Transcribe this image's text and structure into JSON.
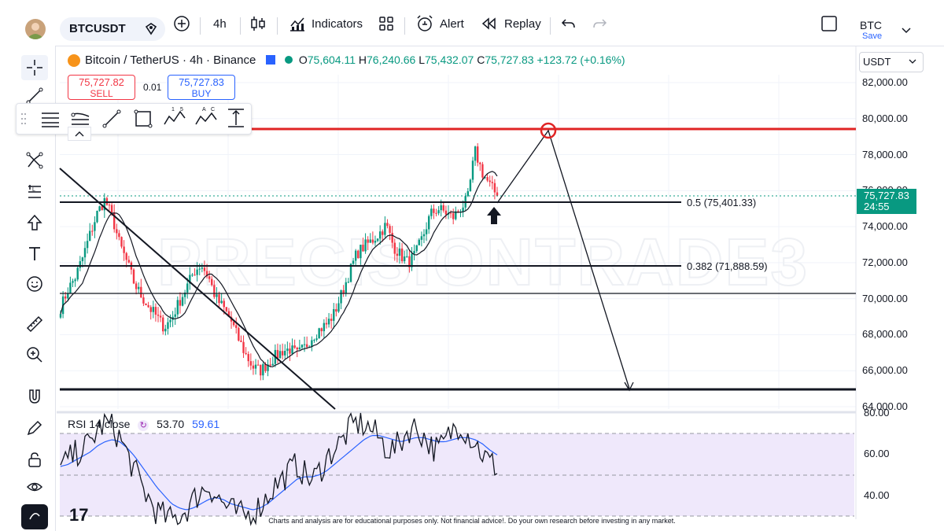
{
  "toolbar": {
    "symbol": "BTCUSDT",
    "interval": "4h",
    "indicators_label": "Indicators",
    "alert_label": "Alert",
    "replay_label": "Replay",
    "layout_name": "BTC",
    "save_label": "Save"
  },
  "legend": {
    "title": "Bitcoin / TetherUS · 4h · Binance",
    "o_label": "O",
    "o_value": "75,604.11",
    "h_label": "H",
    "h_value": "76,240.66",
    "l_label": "L",
    "l_value": "75,432.07",
    "c_label": "C",
    "c_value": "75,727.83",
    "change": "+123.72 (+0.16%)"
  },
  "trade": {
    "sell_price": "75,727.82",
    "sell_label": "SELL",
    "buy_price": "75,727.83",
    "buy_label": "BUY",
    "spread": "0.01"
  },
  "axis": {
    "currency": "USDT",
    "price_labels": [
      "82,000.00",
      "80,000.00",
      "78,000.00",
      "76,000.00",
      "74,000.00",
      "72,000.00",
      "70,000.00",
      "68,000.00",
      "66,000.00",
      "64,000.00"
    ],
    "last_price": "75,727.83",
    "countdown": "24:55",
    "rsi_labels": [
      "80.00",
      "60.00",
      "40.00"
    ]
  },
  "annotations": {
    "fib_05": "0.5 (75,401.33)",
    "fib_0382": "0.382 (71,888.59)",
    "watermark": "PRECISIONTRADE3"
  },
  "rsi": {
    "label": "RSI 14 close",
    "value": "53.70",
    "ma_value": "59.61"
  },
  "disclaimer": "Charts and analysis are for educational purposes only. Not financial advice!. Do your own research before investing in any market.",
  "colors": {
    "up": "#089981",
    "down": "#f23645",
    "resistance": "#e02424",
    "rsi_band": "#efe8fb",
    "rsi_line": "#131722",
    "rsi_ma": "#2962ff"
  },
  "chart_data": {
    "type": "candlestick",
    "symbol": "BTCUSDT",
    "timeframe": "4h",
    "ylim": [
      64000,
      83000
    ],
    "levels": [
      {
        "price": 79400,
        "color": "red"
      },
      {
        "price": 75401.33,
        "label": "0.5 (75,401.33)"
      },
      {
        "price": 71888.59,
        "label": "0.382 (71,888.59)"
      },
      {
        "price": 70200
      },
      {
        "price": 65000
      }
    ],
    "close_path": [
      69500,
      70500,
      71200,
      72300,
      73600,
      74800,
      75500,
      74500,
      73000,
      72000,
      70800,
      70100,
      69500,
      69000,
      68400,
      68900,
      69800,
      70600,
      71500,
      71900,
      71200,
      70000,
      69500,
      68800,
      67800,
      66900,
      66200,
      66000,
      66400,
      66800,
      67100,
      67200,
      66900,
      67300,
      67900,
      68300,
      68600,
      69200,
      70300,
      71400,
      72500,
      72900,
      73200,
      73600,
      74100,
      72900,
      72400,
      72000,
      72500,
      73500,
      74700,
      75000,
      74800,
      74500,
      75000,
      75500,
      78200,
      77000,
      76300,
      75727.83
    ],
    "rsi_ylim": [
      30,
      85
    ],
    "rsi_levels": [
      70,
      50,
      30
    ],
    "rsi_values": [
      53,
      57,
      60,
      63,
      65,
      72,
      75,
      73,
      68,
      60,
      52,
      44,
      38,
      32,
      30,
      28,
      30,
      33,
      38,
      42,
      45,
      40,
      36,
      33,
      31,
      30,
      32,
      35,
      40,
      45,
      48,
      52,
      55,
      50,
      47,
      52,
      58,
      63,
      66,
      72,
      75,
      74,
      72,
      68,
      63,
      62,
      66,
      72,
      73,
      69,
      64,
      62,
      66,
      72,
      75,
      70,
      66,
      60,
      56,
      53.7
    ],
    "rsi_ma_values": [
      54,
      55,
      57,
      59,
      61,
      64,
      66,
      67,
      66,
      63,
      59,
      54,
      49,
      44,
      40,
      36,
      34,
      33,
      34,
      36,
      38,
      39,
      38,
      36,
      35,
      34,
      33,
      34,
      36,
      39,
      42,
      45,
      48,
      49,
      49,
      50,
      52,
      55,
      58,
      61,
      64,
      67,
      69,
      69,
      68,
      67,
      66,
      67,
      68,
      68,
      67,
      66,
      66,
      67,
      68,
      68,
      67,
      65,
      62,
      59.61
    ]
  }
}
